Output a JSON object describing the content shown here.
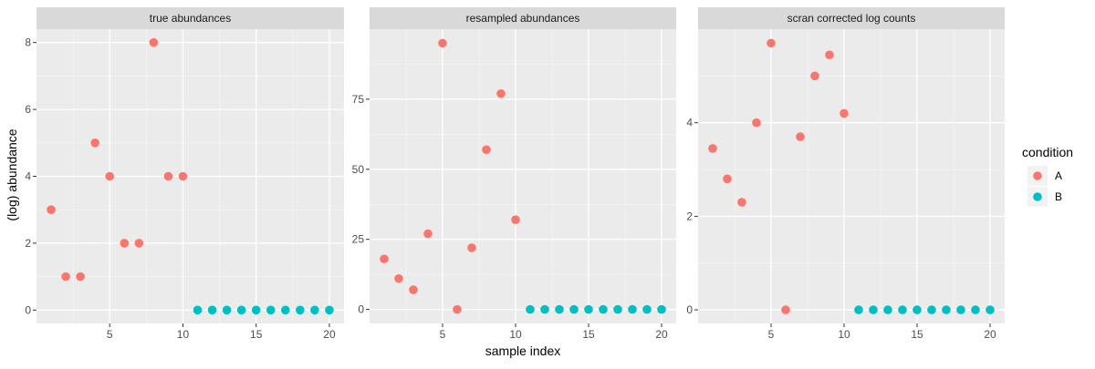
{
  "chart_data": {
    "type": "scatter",
    "xlabel": "sample index",
    "ylabel": "(log) abundance",
    "legend": {
      "title": "condition",
      "placement": "right",
      "entries": [
        {
          "name": "A",
          "color": "#F8766D"
        },
        {
          "name": "B",
          "color": "#00BFC4"
        }
      ]
    },
    "grid": true,
    "x_ticks": [
      5,
      10,
      15,
      20
    ],
    "xlim": [
      0,
      21
    ],
    "panels": [
      {
        "title": "true abundances",
        "ylim": [
          -0.4,
          8.4
        ],
        "y_ticks": [
          0,
          2,
          4,
          6,
          8
        ],
        "series": [
          {
            "name": "A",
            "x": [
              1,
              2,
              3,
              4,
              5,
              6,
              7,
              8,
              9,
              10
            ],
            "y": [
              3,
              1,
              1,
              5,
              4,
              2,
              2,
              8,
              4,
              4
            ]
          },
          {
            "name": "B",
            "x": [
              11,
              12,
              13,
              14,
              15,
              16,
              17,
              18,
              19,
              20
            ],
            "y": [
              0,
              0,
              0,
              0,
              0,
              0,
              0,
              0,
              0,
              0
            ]
          }
        ]
      },
      {
        "title": "resampled abundances",
        "ylim": [
          -5,
          100
        ],
        "y_ticks": [
          0,
          25,
          50,
          75
        ],
        "series": [
          {
            "name": "A",
            "x": [
              1,
              2,
              3,
              4,
              5,
              6,
              7,
              8,
              9,
              10
            ],
            "y": [
              18,
              11,
              7,
              27,
              95,
              0,
              22,
              57,
              77,
              32
            ]
          },
          {
            "name": "B",
            "x": [
              11,
              12,
              13,
              14,
              15,
              16,
              17,
              18,
              19,
              20
            ],
            "y": [
              0,
              0,
              0,
              0,
              0,
              0,
              0,
              0,
              0,
              0
            ]
          }
        ]
      },
      {
        "title": "scran corrected log counts",
        "ylim": [
          -0.29,
          6.0
        ],
        "y_ticks": [
          0,
          2,
          4
        ],
        "series": [
          {
            "name": "A",
            "x": [
              1,
              2,
              3,
              4,
              5,
              6,
              7,
              8,
              9,
              10
            ],
            "y": [
              3.45,
              2.8,
              2.3,
              4.0,
              5.7,
              0.0,
              3.7,
              5.0,
              5.45,
              4.2
            ]
          },
          {
            "name": "B",
            "x": [
              11,
              12,
              13,
              14,
              15,
              16,
              17,
              18,
              19,
              20
            ],
            "y": [
              0,
              0,
              0,
              0,
              0,
              0,
              0,
              0,
              0,
              0
            ]
          }
        ]
      }
    ]
  }
}
